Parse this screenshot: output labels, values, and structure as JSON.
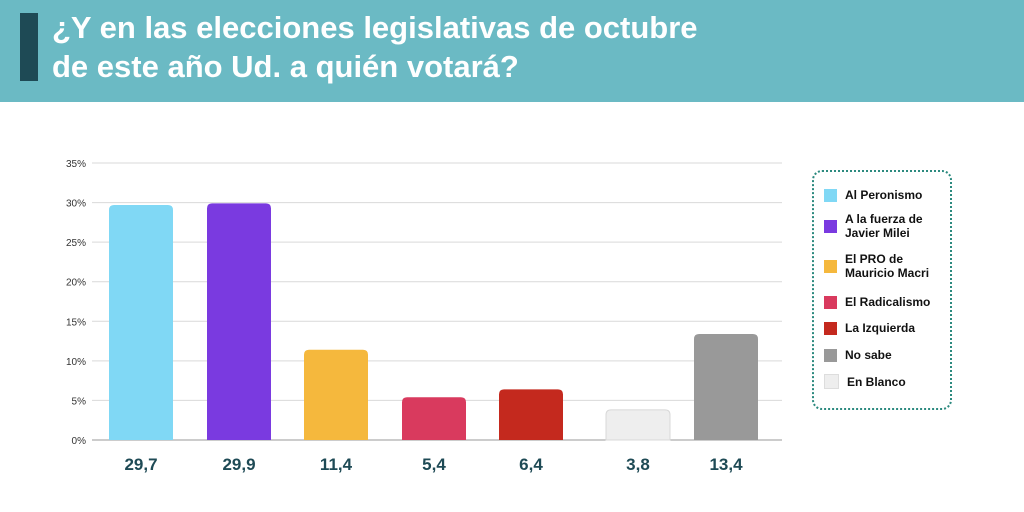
{
  "header": {
    "title_line1": "¿Y en las elecciones legislativas de octubre",
    "title_line2": "de este año Ud. a quién votará?",
    "background_color": "#6bbac4",
    "accent_color": "#1e4a55"
  },
  "chart_data": {
    "type": "bar",
    "title": "¿Y en las elecciones legislativas de octubre de este año Ud. a quién votará?",
    "categories": [
      "Al Peronismo",
      "A la fuerza de Javier Milei",
      "El PRO de Mauricio Macri",
      "El Radicalismo",
      "La Izquierda",
      "En Blanco",
      "No sabe"
    ],
    "values": [
      29.7,
      29.9,
      11.4,
      5.4,
      6.4,
      3.8,
      13.4
    ],
    "value_labels": [
      "29,7",
      "29,9",
      "11,4",
      "5,4",
      "6,4",
      "3,8",
      "13,4"
    ],
    "colors": [
      "#80d8f5",
      "#7a3ae0",
      "#f5b83d",
      "#d93a5e",
      "#c4291e",
      "#eeeeee",
      "#999999"
    ],
    "ylim": [
      0,
      35
    ],
    "yticks": [
      0,
      5,
      10,
      15,
      20,
      25,
      30,
      35
    ],
    "ytick_labels": [
      "0%",
      "5%",
      "10%",
      "15%",
      "20%",
      "25%",
      "30%",
      "35%"
    ],
    "xlabel": "",
    "ylabel": "",
    "grid": true,
    "legend_position": "right",
    "legend": [
      {
        "label": "Al Peronismo",
        "color": "#80d8f5"
      },
      {
        "label": "A la fuerza de Javier Milei",
        "color": "#7a3ae0"
      },
      {
        "label": "El PRO de Mauricio Macri",
        "color": "#f5b83d"
      },
      {
        "label": "El Radicalismo",
        "color": "#d93a5e"
      },
      {
        "label": "La Izquierda",
        "color": "#c4291e"
      },
      {
        "label": "No sabe",
        "color": "#999999"
      },
      {
        "label": "En Blanco",
        "color": "#eeeeee"
      }
    ]
  }
}
